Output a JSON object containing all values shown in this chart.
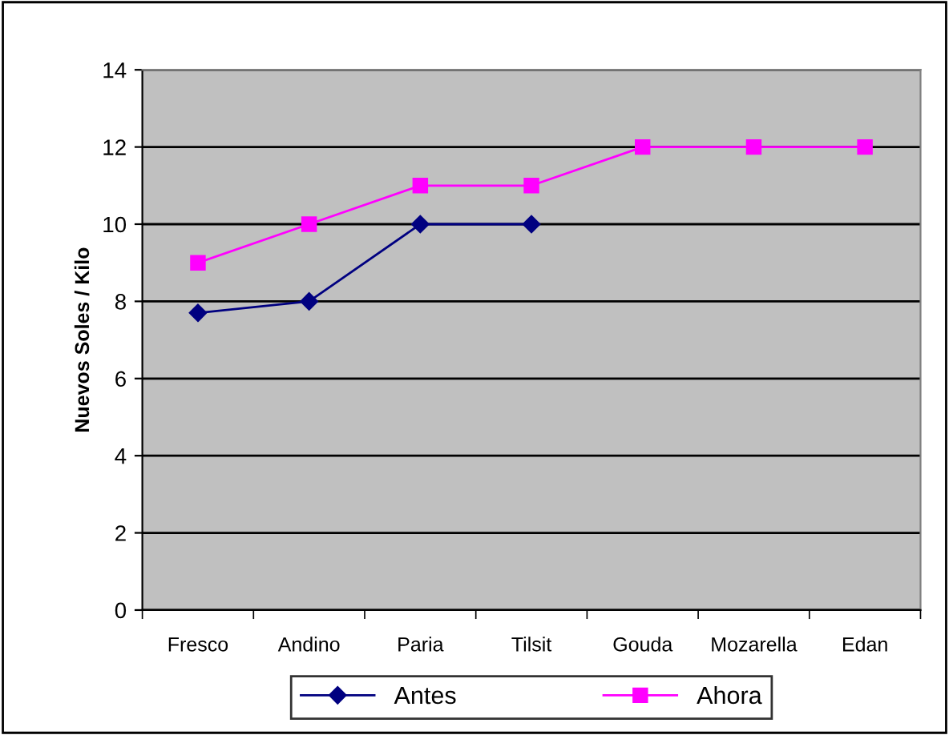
{
  "chart_data": {
    "type": "line",
    "ylabel": "Nuevos Soles / Kilo",
    "categories": [
      "Fresco",
      "Andino",
      "Paria",
      "Tilsit",
      "Gouda",
      "Mozarella",
      "Edan"
    ],
    "series": [
      {
        "name": "Antes",
        "color": "#000080",
        "marker": "diamond",
        "values": [
          7.7,
          8,
          10,
          10,
          null,
          null,
          null
        ]
      },
      {
        "name": "Ahora",
        "color": "#ff00ff",
        "marker": "square",
        "values": [
          9,
          10,
          11,
          11,
          12,
          12,
          12
        ]
      }
    ],
    "ylim": [
      0,
      14
    ],
    "yticks": [
      0,
      2,
      4,
      6,
      8,
      10,
      12,
      14
    ],
    "grid": "y",
    "legend": "bottom"
  }
}
